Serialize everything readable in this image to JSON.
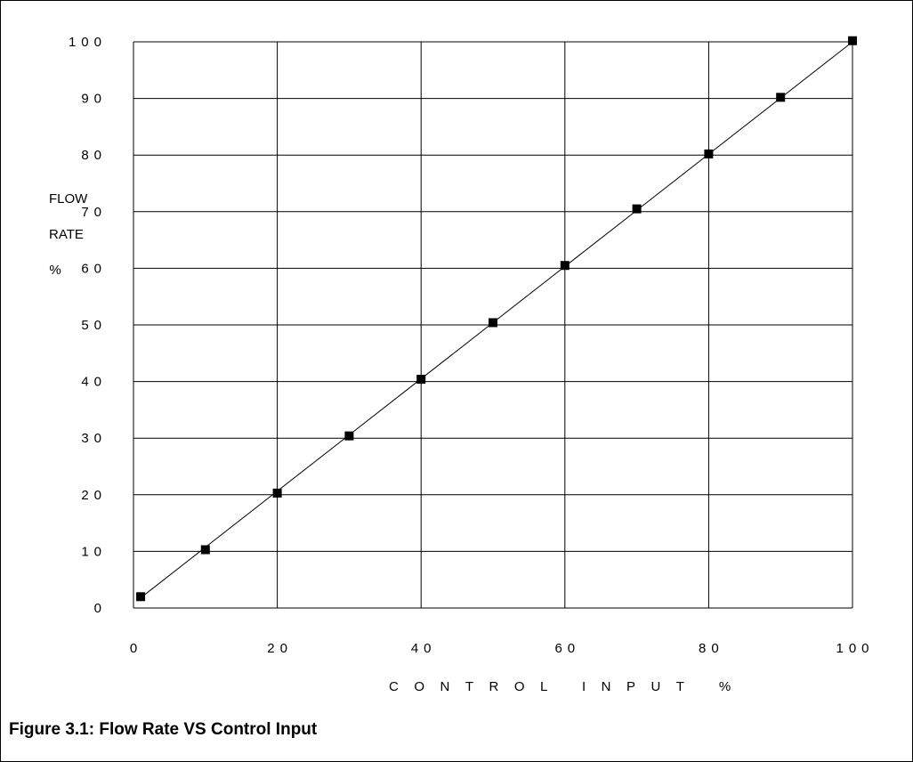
{
  "chart_data": {
    "type": "scatter",
    "caption": "Figure 3.1:  Flow Rate VS Control Input",
    "xlabel": "CONTROL INPUT %",
    "ylabel": "FLOW\n\nRATE\n\n%",
    "xlim": [
      0,
      100
    ],
    "ylim": [
      0,
      100
    ],
    "x_ticks": [
      "0",
      "20",
      "40",
      "60",
      "80",
      "100"
    ],
    "y_ticks": [
      "0",
      "10",
      "20",
      "30",
      "40",
      "50",
      "60",
      "70",
      "80",
      "90",
      "100"
    ],
    "grid": true,
    "marker": "square",
    "points": {
      "x": [
        1,
        10,
        20,
        30,
        40,
        50,
        60,
        70,
        80,
        90,
        100
      ],
      "y": [
        2,
        10.3,
        20.3,
        30.4,
        40.4,
        50.4,
        60.5,
        70.5,
        80.2,
        90.2,
        100.2
      ]
    },
    "fit_line": {
      "x": [
        1,
        100
      ],
      "y": [
        1.8,
        100
      ]
    }
  }
}
